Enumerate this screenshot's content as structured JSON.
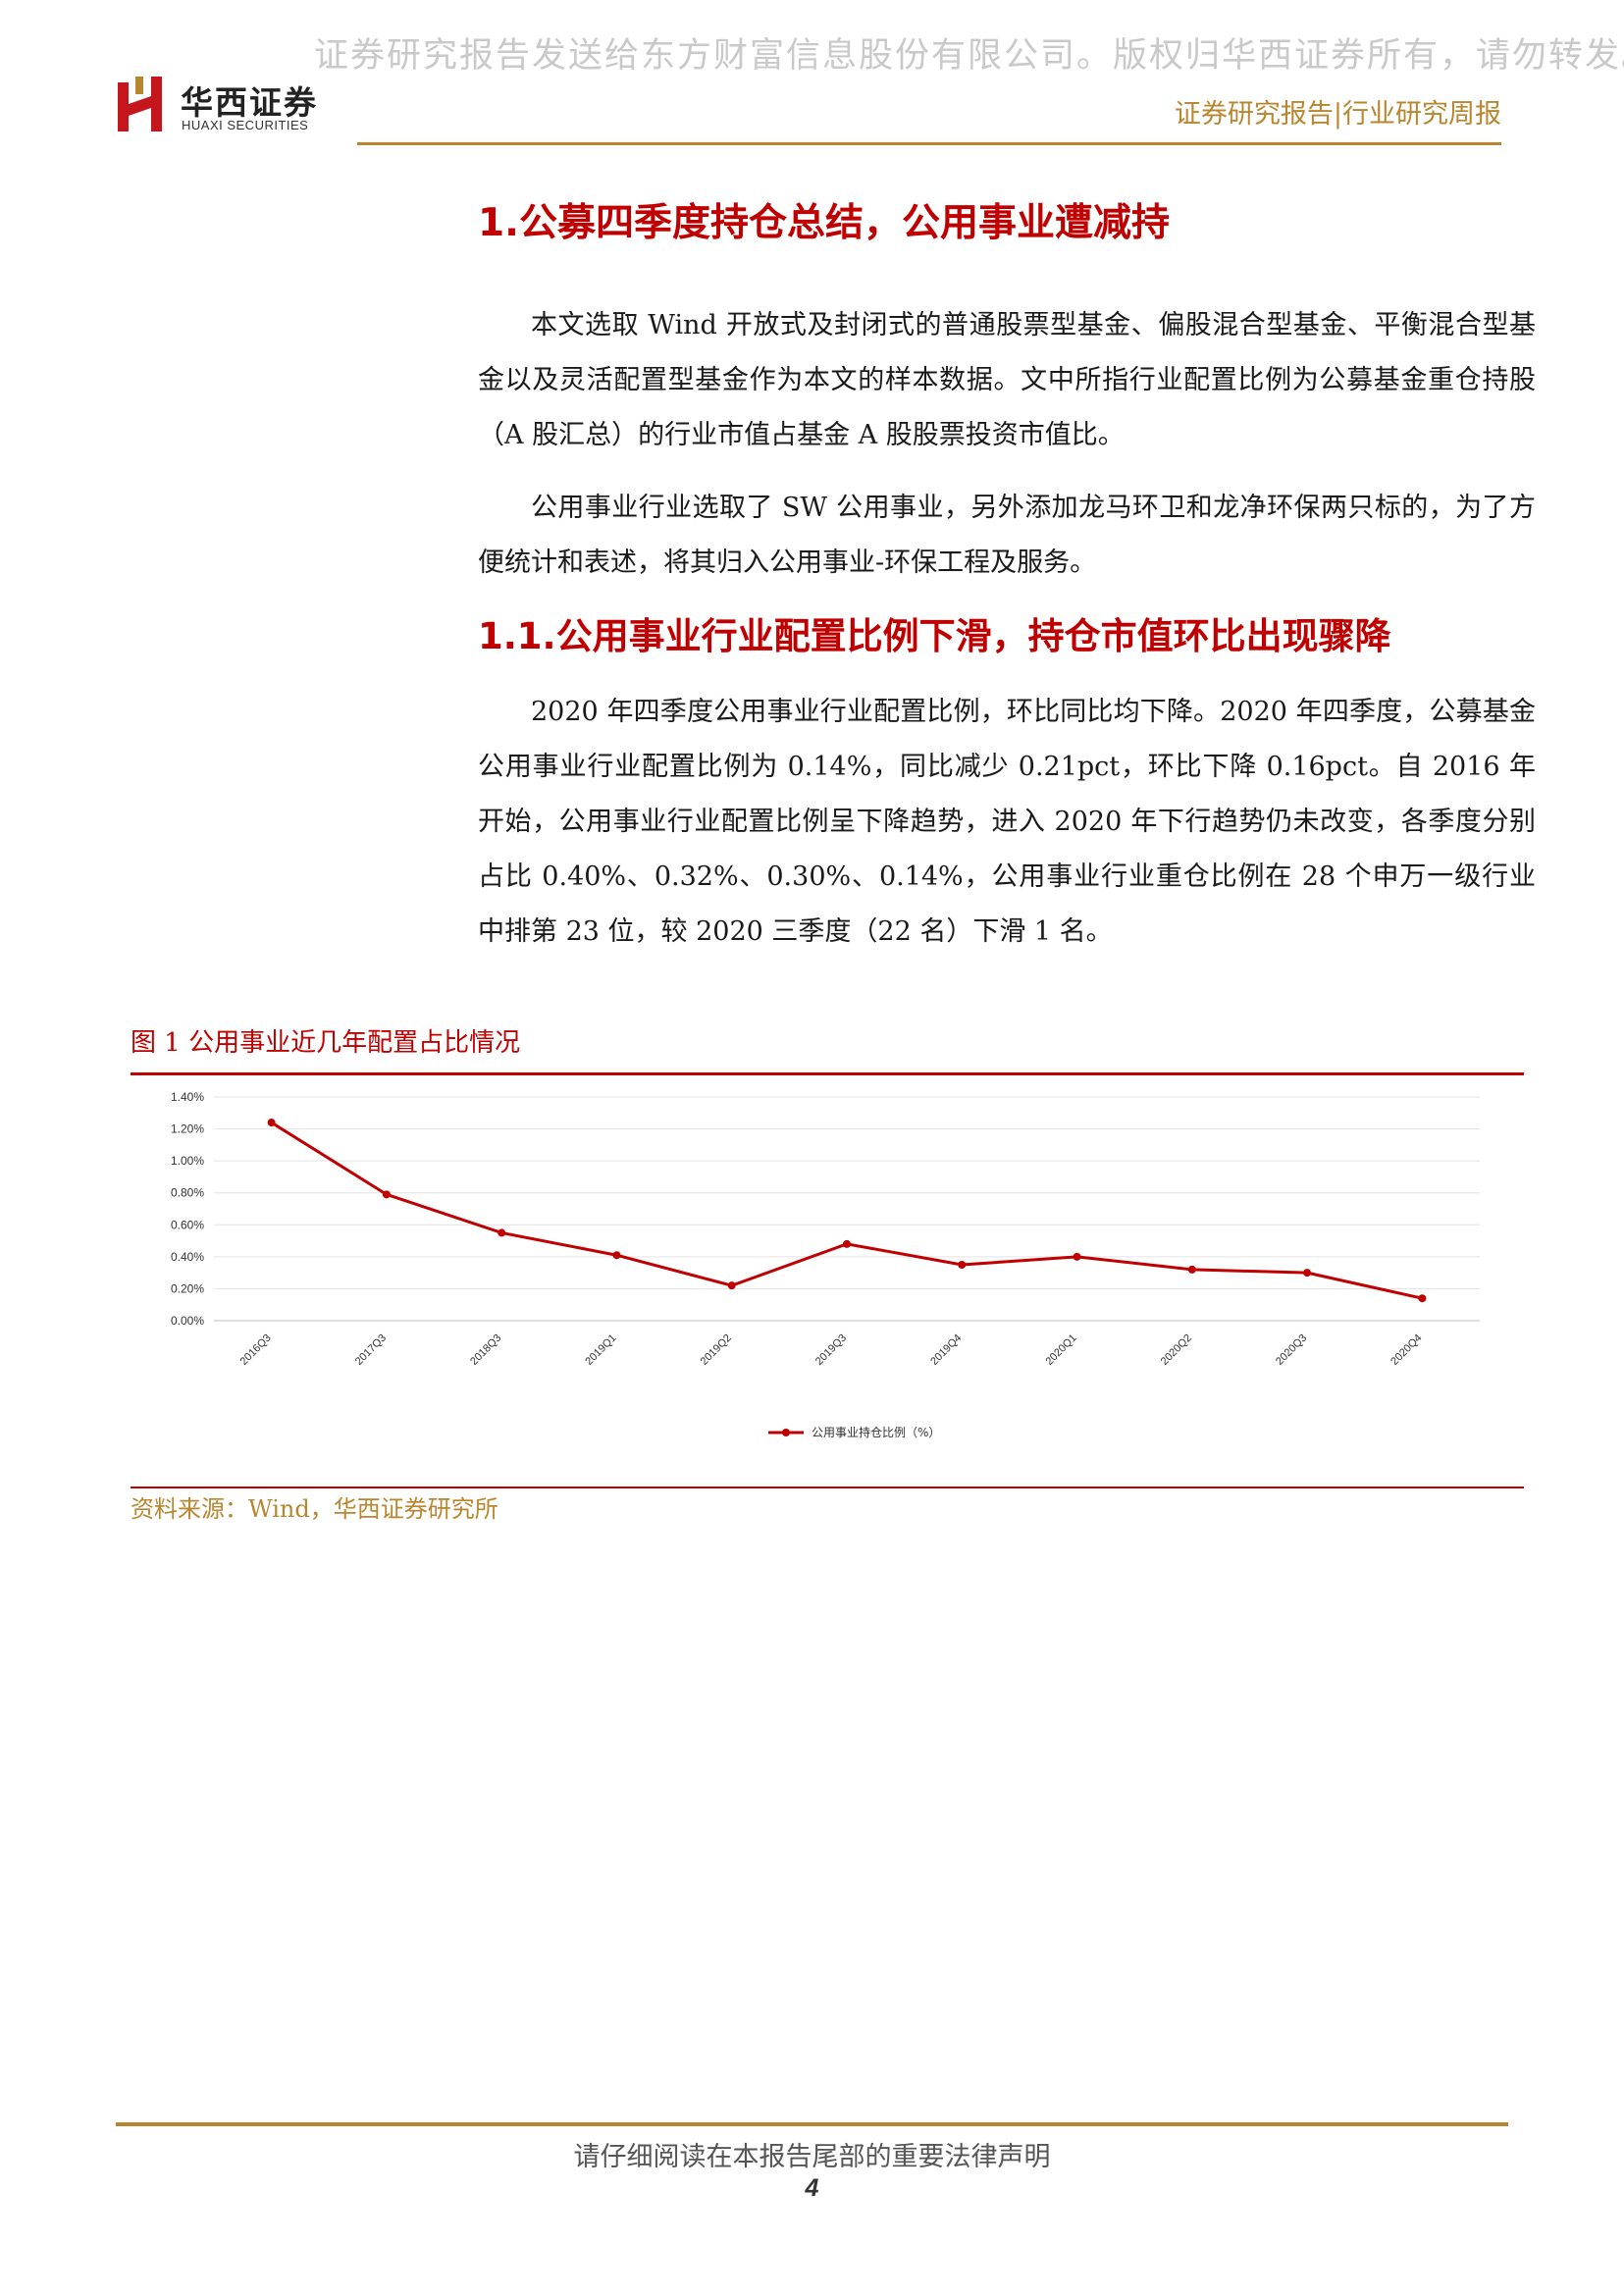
{
  "watermark": "证券研究报告发送给东方财富信息股份有限公司。版权归华西证券所有，请勿转发。 p",
  "header": {
    "logo_cn": "华西证券",
    "logo_en": "HUAXI SECURITIES",
    "report_type": "证券研究报告|行业研究周报",
    "accent_color": "#b8862f"
  },
  "section1": {
    "title": "1.公募四季度持仓总结，公用事业遭减持",
    "para1": "本文选取 Wind 开放式及封闭式的普通股票型基金、偏股混合型基金、平衡混合型基金以及灵活配置型基金作为本文的样本数据。文中所指行业配置比例为公募基金重仓持股（A 股汇总）的行业市值占基金 A 股股票投资市值比。",
    "para2": "公用事业行业选取了 SW 公用事业，另外添加龙马环卫和龙净环保两只标的，为了方便统计和表述，将其归入公用事业-环保工程及服务。"
  },
  "section1_1": {
    "title": "1.1.公用事业行业配置比例下滑，持仓市值环比出现骤降",
    "para1": "2020 年四季度公用事业行业配置比例，环比同比均下降。2020 年四季度，公募基金公用事业行业配置比例为 0.14%，同比减少 0.21pct，环比下降 0.16pct。自 2016 年开始，公用事业行业配置比例呈下降趋势，进入 2020 年下行趋势仍未改变，各季度分别占比 0.40%、0.32%、0.30%、0.14%，公用事业行业重仓比例在 28 个申万一级行业中排第 23 位，较 2020 三季度（22 名）下滑 1 名。"
  },
  "figure": {
    "title": "图 1  公用事业近几年配置占比情况",
    "source": "资料来源：Wind，华西证券研究所"
  },
  "chart_data": {
    "type": "line",
    "categories": [
      "2016Q3",
      "2017Q3",
      "2018Q3",
      "2019Q1",
      "2019Q2",
      "2019Q3",
      "2019Q4",
      "2020Q1",
      "2020Q2",
      "2020Q3",
      "2020Q4"
    ],
    "series": [
      {
        "name": "公用事业持仓比例（%）",
        "values": [
          1.24,
          0.79,
          0.55,
          0.41,
          0.22,
          0.48,
          0.35,
          0.4,
          0.32,
          0.3,
          0.14
        ],
        "color": "#c00000"
      }
    ],
    "yticks": [
      "0.00%",
      "0.20%",
      "0.40%",
      "0.60%",
      "0.80%",
      "1.00%",
      "1.20%",
      "1.40%"
    ],
    "ylim": [
      0,
      1.4
    ],
    "grid": true,
    "legend_position": "bottom"
  },
  "footer": {
    "disclaimer": "请仔细阅读在本报告尾部的重要法律声明",
    "page": "4"
  }
}
